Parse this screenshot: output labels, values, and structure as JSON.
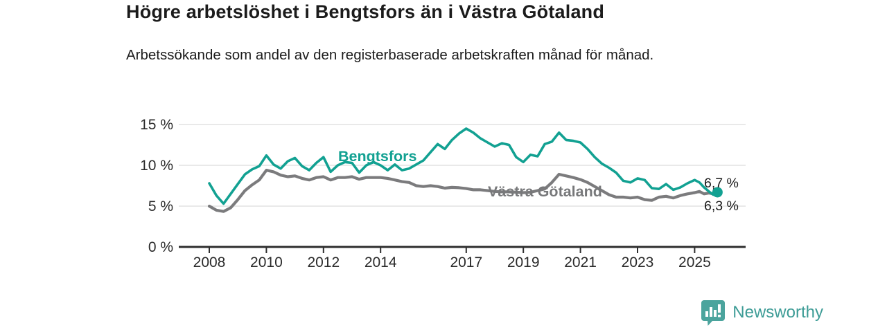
{
  "header": {
    "title": "Högre arbetslöshet i Bengtsfors än i Västra Götaland",
    "subtitle": "Arbetssökande som andel av den registerbaserade arbetskraften månad för månad."
  },
  "chart_data": {
    "type": "line",
    "title": "Högre arbetslöshet i Bengtsfors än i Västra Götaland",
    "subtitle": "Arbetssökande som andel av den registerbaserade arbetskraften månad för månad.",
    "unit": "%",
    "grid": "horizontal",
    "legend_position": "inline-labels",
    "x_axis": {
      "range": [
        2007.55,
        2026.45
      ],
      "ticks": [
        {
          "value": 2008,
          "label": "2008"
        },
        {
          "value": 2010,
          "label": "2010"
        },
        {
          "value": 2012,
          "label": "2012"
        },
        {
          "value": 2014,
          "label": "2014"
        },
        {
          "value": 2017,
          "label": "2017"
        },
        {
          "value": 2019,
          "label": "2019"
        },
        {
          "value": 2021,
          "label": "2021"
        },
        {
          "value": 2023,
          "label": "2023"
        },
        {
          "value": 2025,
          "label": "2025"
        }
      ]
    },
    "y_axis": {
      "range": [
        0,
        15.5
      ],
      "ticks": [
        {
          "value": 15,
          "label": "15 %"
        },
        {
          "value": 10,
          "label": "10 %"
        },
        {
          "value": 5,
          "label": "5 %"
        },
        {
          "value": 0,
          "label": "0 %"
        }
      ]
    },
    "series": [
      {
        "name": "Västra Götaland",
        "color": "#7b7b7d",
        "label_color": "#77787a",
        "end_label": "6,3 %",
        "end_marker": false,
        "points": [
          [
            2008.0,
            5.0
          ],
          [
            2008.25,
            4.5
          ],
          [
            2008.5,
            4.35
          ],
          [
            2008.75,
            4.8
          ],
          [
            2009.0,
            5.8
          ],
          [
            2009.25,
            6.9
          ],
          [
            2009.5,
            7.6
          ],
          [
            2009.75,
            8.2
          ],
          [
            2010.0,
            9.4
          ],
          [
            2010.25,
            9.2
          ],
          [
            2010.5,
            8.8
          ],
          [
            2010.75,
            8.6
          ],
          [
            2011.0,
            8.7
          ],
          [
            2011.25,
            8.4
          ],
          [
            2011.5,
            8.2
          ],
          [
            2011.75,
            8.5
          ],
          [
            2012.0,
            8.6
          ],
          [
            2012.25,
            8.2
          ],
          [
            2012.5,
            8.5
          ],
          [
            2012.75,
            8.5
          ],
          [
            2013.0,
            8.6
          ],
          [
            2013.25,
            8.3
          ],
          [
            2013.5,
            8.5
          ],
          [
            2013.75,
            8.5
          ],
          [
            2014.0,
            8.5
          ],
          [
            2014.25,
            8.4
          ],
          [
            2014.5,
            8.2
          ],
          [
            2014.75,
            8.0
          ],
          [
            2015.0,
            7.9
          ],
          [
            2015.25,
            7.5
          ],
          [
            2015.5,
            7.4
          ],
          [
            2015.75,
            7.5
          ],
          [
            2016.0,
            7.4
          ],
          [
            2016.25,
            7.2
          ],
          [
            2016.5,
            7.3
          ],
          [
            2016.75,
            7.25
          ],
          [
            2017.0,
            7.15
          ],
          [
            2017.25,
            7.0
          ],
          [
            2017.5,
            7.0
          ],
          [
            2017.75,
            6.9
          ],
          [
            2018.0,
            6.8
          ],
          [
            2018.25,
            6.75
          ],
          [
            2018.5,
            6.75
          ],
          [
            2018.75,
            6.7
          ],
          [
            2019.0,
            6.65
          ],
          [
            2019.25,
            6.7
          ],
          [
            2019.5,
            6.9
          ],
          [
            2019.75,
            7.1
          ],
          [
            2020.0,
            7.9
          ],
          [
            2020.25,
            8.9
          ],
          [
            2020.5,
            8.7
          ],
          [
            2020.75,
            8.5
          ],
          [
            2021.0,
            8.25
          ],
          [
            2021.25,
            7.9
          ],
          [
            2021.5,
            7.4
          ],
          [
            2021.75,
            6.9
          ],
          [
            2022.0,
            6.4
          ],
          [
            2022.25,
            6.1
          ],
          [
            2022.5,
            6.1
          ],
          [
            2022.75,
            6.0
          ],
          [
            2023.0,
            6.1
          ],
          [
            2023.25,
            5.8
          ],
          [
            2023.5,
            5.7
          ],
          [
            2023.75,
            6.1
          ],
          [
            2024.0,
            6.2
          ],
          [
            2024.25,
            6.0
          ],
          [
            2024.5,
            6.3
          ],
          [
            2024.75,
            6.5
          ],
          [
            2025.0,
            6.65
          ],
          [
            2025.17,
            6.8
          ],
          [
            2025.33,
            6.5
          ],
          [
            2025.5,
            6.6
          ],
          [
            2025.65,
            6.5
          ],
          [
            2025.8,
            6.3
          ]
        ]
      },
      {
        "name": "Bengtsfors",
        "color": "#12a192",
        "label_color": "#12a192",
        "end_label": "6,7 %",
        "end_marker": true,
        "points": [
          [
            2008.0,
            7.8
          ],
          [
            2008.25,
            6.3
          ],
          [
            2008.5,
            5.3
          ],
          [
            2008.75,
            6.5
          ],
          [
            2009.0,
            7.7
          ],
          [
            2009.25,
            8.9
          ],
          [
            2009.5,
            9.5
          ],
          [
            2009.75,
            9.9
          ],
          [
            2010.0,
            11.2
          ],
          [
            2010.25,
            10.1
          ],
          [
            2010.5,
            9.6
          ],
          [
            2010.75,
            10.5
          ],
          [
            2011.0,
            10.9
          ],
          [
            2011.25,
            9.9
          ],
          [
            2011.5,
            9.4
          ],
          [
            2011.75,
            10.3
          ],
          [
            2012.0,
            11.0
          ],
          [
            2012.25,
            9.2
          ],
          [
            2012.5,
            10.0
          ],
          [
            2012.75,
            10.4
          ],
          [
            2013.0,
            10.3
          ],
          [
            2013.25,
            9.1
          ],
          [
            2013.5,
            10.0
          ],
          [
            2013.75,
            10.4
          ],
          [
            2014.0,
            10.0
          ],
          [
            2014.25,
            9.4
          ],
          [
            2014.5,
            10.1
          ],
          [
            2014.75,
            9.4
          ],
          [
            2015.0,
            9.6
          ],
          [
            2015.25,
            10.1
          ],
          [
            2015.5,
            10.6
          ],
          [
            2015.75,
            11.6
          ],
          [
            2016.0,
            12.6
          ],
          [
            2016.25,
            12.0
          ],
          [
            2016.5,
            13.1
          ],
          [
            2016.75,
            13.9
          ],
          [
            2017.0,
            14.5
          ],
          [
            2017.25,
            14.0
          ],
          [
            2017.5,
            13.3
          ],
          [
            2017.75,
            12.8
          ],
          [
            2018.0,
            12.3
          ],
          [
            2018.25,
            12.7
          ],
          [
            2018.5,
            12.5
          ],
          [
            2018.75,
            11.0
          ],
          [
            2019.0,
            10.4
          ],
          [
            2019.25,
            11.3
          ],
          [
            2019.5,
            11.1
          ],
          [
            2019.75,
            12.6
          ],
          [
            2020.0,
            12.9
          ],
          [
            2020.25,
            14.0
          ],
          [
            2020.5,
            13.1
          ],
          [
            2020.75,
            13.0
          ],
          [
            2021.0,
            12.8
          ],
          [
            2021.25,
            12.0
          ],
          [
            2021.5,
            11.0
          ],
          [
            2021.75,
            10.2
          ],
          [
            2022.0,
            9.7
          ],
          [
            2022.25,
            9.1
          ],
          [
            2022.5,
            8.1
          ],
          [
            2022.75,
            7.9
          ],
          [
            2023.0,
            8.4
          ],
          [
            2023.25,
            8.2
          ],
          [
            2023.5,
            7.2
          ],
          [
            2023.75,
            7.1
          ],
          [
            2024.0,
            7.7
          ],
          [
            2024.25,
            7.0
          ],
          [
            2024.5,
            7.3
          ],
          [
            2024.75,
            7.8
          ],
          [
            2025.0,
            8.2
          ],
          [
            2025.17,
            7.9
          ],
          [
            2025.33,
            7.3
          ],
          [
            2025.5,
            6.8
          ],
          [
            2025.65,
            6.4
          ],
          [
            2025.8,
            6.7
          ]
        ]
      }
    ]
  },
  "colors": {
    "accent_teal": "#12a192",
    "line_gray": "#7b7b7d",
    "gridline": "#dcdcdc",
    "axis": "#2e2e2e",
    "text": "#1b1b1b",
    "end_label_text": "#1a1a1a"
  },
  "branding": {
    "logo_text": "Newsworthy",
    "logo_icon": "bar-chart-speech-bubble-icon",
    "logo_color": "#4ba49d",
    "logo_text_color": "#3d9c96"
  }
}
